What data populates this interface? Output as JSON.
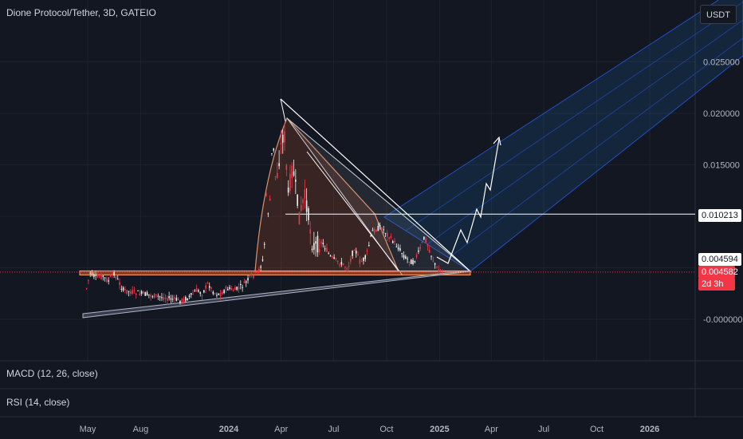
{
  "header": {
    "title": "Dione Protocol/Tether, 3D, GATEIO"
  },
  "currency_button": "USDT",
  "indicators": {
    "macd": "MACD (12, 26, close)",
    "rsi": "RSI (14, close)"
  },
  "price_tags": {
    "resistance_line": "0.010213",
    "last_high": "0.004594",
    "current_price": "0.004582",
    "countdown": "2d 3h"
  },
  "colors": {
    "background": "#131722",
    "up_candle": "#f2f2f2",
    "down_candle": "#f23645",
    "channel": "#2962ff",
    "channel_fill": "#1e88e5",
    "triangle_fill": "#e0622d",
    "support_band": "#e0622d",
    "trendline": "#b2b5be",
    "projection": "#ffffff"
  },
  "chart_data": {
    "type": "candlestick",
    "symbol": "Dione Protocol/Tether",
    "interval": "3D",
    "exchange": "GATEIO",
    "y_ticks": [
      "0.025000",
      "0.020000",
      "0.015000",
      "-0.000000"
    ],
    "y_tick_values": [
      0.025,
      0.02,
      0.015,
      0.0
    ],
    "x_ticks": [
      "May",
      "Aug",
      "2024",
      "Apr",
      "Jul",
      "Oct",
      "2025",
      "Apr",
      "Jul",
      "Oct",
      "2026"
    ],
    "x_tick_dates": [
      "2023-05-01",
      "2023-08-01",
      "2024-01-01",
      "2024-04-01",
      "2024-07-01",
      "2024-10-01",
      "2025-01-01",
      "2025-04-01",
      "2025-07-01",
      "2025-10-01",
      "2026-01-01"
    ],
    "bold_x_ticks": [
      "2024",
      "2025",
      "2026"
    ],
    "close_path": [
      [
        "2023-04-28",
        0.003
      ],
      [
        "2023-05-04",
        0.0045
      ],
      [
        "2023-05-15",
        0.004
      ],
      [
        "2023-05-25",
        0.0042
      ],
      [
        "2023-06-05",
        0.0037
      ],
      [
        "2023-06-15",
        0.0045
      ],
      [
        "2023-06-20",
        0.0039
      ],
      [
        "2023-07-01",
        0.0028
      ],
      [
        "2023-07-20",
        0.0026
      ],
      [
        "2023-08-10",
        0.0024
      ],
      [
        "2023-09-01",
        0.0022
      ],
      [
        "2023-09-20",
        0.002
      ],
      [
        "2023-10-10",
        0.0018
      ],
      [
        "2023-10-25",
        0.0022
      ],
      [
        "2023-11-05",
        0.0028
      ],
      [
        "2023-11-15",
        0.0025
      ],
      [
        "2023-11-25",
        0.0035
      ],
      [
        "2023-12-05",
        0.0026
      ],
      [
        "2023-12-15",
        0.0024
      ],
      [
        "2023-12-28",
        0.003
      ],
      [
        "2024-01-10",
        0.0028
      ],
      [
        "2024-01-25",
        0.0033
      ],
      [
        "2024-02-05",
        0.004
      ],
      [
        "2024-02-20",
        0.0046
      ],
      [
        "2024-03-01",
        0.006
      ],
      [
        "2024-03-05",
        0.012
      ],
      [
        "2024-03-10",
        0.0095
      ],
      [
        "2024-03-16",
        0.018
      ],
      [
        "2024-03-22",
        0.013
      ],
      [
        "2024-03-28",
        0.016
      ],
      [
        "2024-04-05",
        0.0185
      ],
      [
        "2024-04-12",
        0.012
      ],
      [
        "2024-04-20",
        0.015
      ],
      [
        "2024-05-01",
        0.01
      ],
      [
        "2024-05-12",
        0.012
      ],
      [
        "2024-05-25",
        0.007
      ],
      [
        "2024-06-10",
        0.0075
      ],
      [
        "2024-06-25",
        0.006
      ],
      [
        "2024-07-10",
        0.0055
      ],
      [
        "2024-07-25",
        0.005
      ],
      [
        "2024-08-05",
        0.007
      ],
      [
        "2024-08-15",
        0.0055
      ],
      [
        "2024-08-25",
        0.006
      ],
      [
        "2024-09-05",
        0.0085
      ],
      [
        "2024-09-20",
        0.009
      ],
      [
        "2024-10-05",
        0.008
      ],
      [
        "2024-10-20",
        0.007
      ],
      [
        "2024-11-01",
        0.006
      ],
      [
        "2024-11-15",
        0.0055
      ],
      [
        "2024-11-25",
        0.0065
      ],
      [
        "2024-12-05",
        0.008
      ],
      [
        "2024-12-15",
        0.0065
      ],
      [
        "2024-12-25",
        0.005
      ],
      [
        "2025-01-05",
        0.0046
      ]
    ],
    "current_price": 0.004582,
    "annotations": {
      "resistance_line": 0.010213,
      "support_zone": [
        0.0043,
        0.0047
      ],
      "pattern": "symmetrical triangle",
      "projection": "ascending channel breakout"
    },
    "grid": true,
    "legend": "top-left"
  }
}
